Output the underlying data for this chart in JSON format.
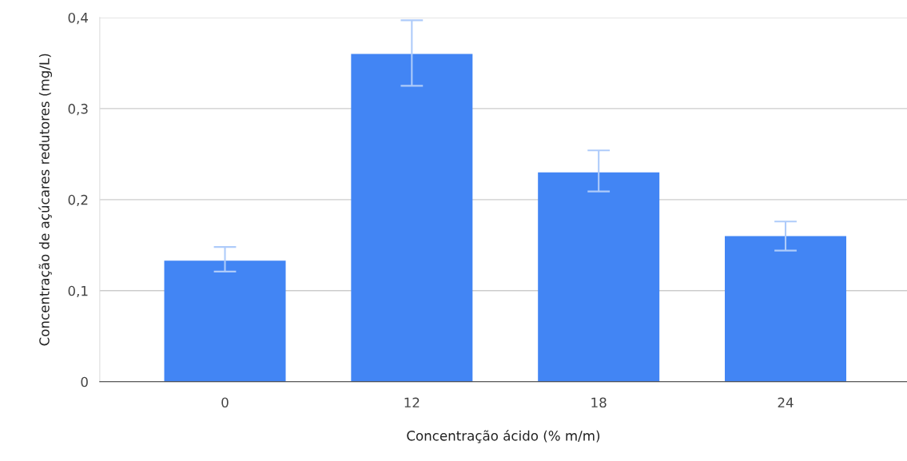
{
  "chart_data": {
    "type": "bar",
    "xlabel": "Concentração ácido (% m/m)",
    "ylabel": "Concentração de açúcares redutores (mg/L)",
    "categories": [
      "0",
      "12",
      "18",
      "24"
    ],
    "values": [
      0.133,
      0.36,
      0.23,
      0.16
    ],
    "errors": [
      [
        0.121,
        0.148
      ],
      [
        0.325,
        0.397
      ],
      [
        0.209,
        0.254
      ],
      [
        0.144,
        0.176
      ]
    ],
    "color": "#4285f4",
    "ylim": [
      0,
      0.4
    ],
    "yticks": [
      {
        "value": 0,
        "label": "0"
      },
      {
        "value": 0.1,
        "label": "0,1"
      },
      {
        "value": 0.2,
        "label": "0,2"
      },
      {
        "value": 0.3,
        "label": "0,3"
      },
      {
        "value": 0.4,
        "label": "0,4"
      }
    ],
    "grid": "y"
  }
}
